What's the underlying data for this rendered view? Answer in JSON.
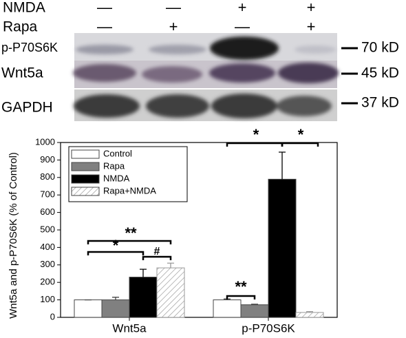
{
  "blot": {
    "treatments": [
      {
        "name": "NMDA",
        "signs": [
          "—",
          "—",
          "+",
          "+"
        ]
      },
      {
        "name": "Rapa",
        "signs": [
          "—",
          "+",
          "—",
          "+"
        ]
      }
    ],
    "rows": [
      {
        "label": "p-P70S6K",
        "marker": "70 kD"
      },
      {
        "label": "Wnt5a",
        "marker": "45 kD"
      },
      {
        "label": "GAPDH",
        "marker": "37 kD"
      }
    ]
  },
  "chart_data": {
    "type": "bar",
    "ylabel": "Wnt5a and p-P70S6K (% of Control)",
    "categories": [
      "Wnt5a",
      "p-P70S6K"
    ],
    "series": [
      {
        "name": "Control",
        "color": "#ffffff",
        "values": [
          100,
          100
        ],
        "errors": [
          0,
          5
        ]
      },
      {
        "name": "Rapa",
        "color": "#808080",
        "values": [
          100,
          72
        ],
        "errors": [
          15,
          3
        ]
      },
      {
        "name": "NMDA",
        "color": "#000000",
        "values": [
          230,
          790
        ],
        "errors": [
          45,
          155
        ]
      },
      {
        "name": "Rapa+NMDA",
        "color": "#ffffff",
        "pattern": "hatch",
        "values": [
          283,
          28
        ],
        "errors": [
          27,
          5
        ]
      }
    ],
    "ylim": [
      0,
      1000
    ],
    "yticks": [
      0,
      100,
      200,
      300,
      400,
      500,
      600,
      700,
      800,
      900,
      1000
    ],
    "legend": "upper left",
    "annotations": [
      {
        "text": "**"
      },
      {
        "text": "*"
      },
      {
        "text": "#"
      },
      {
        "text": "**"
      },
      {
        "text": "*"
      },
      {
        "text": "*"
      }
    ]
  }
}
